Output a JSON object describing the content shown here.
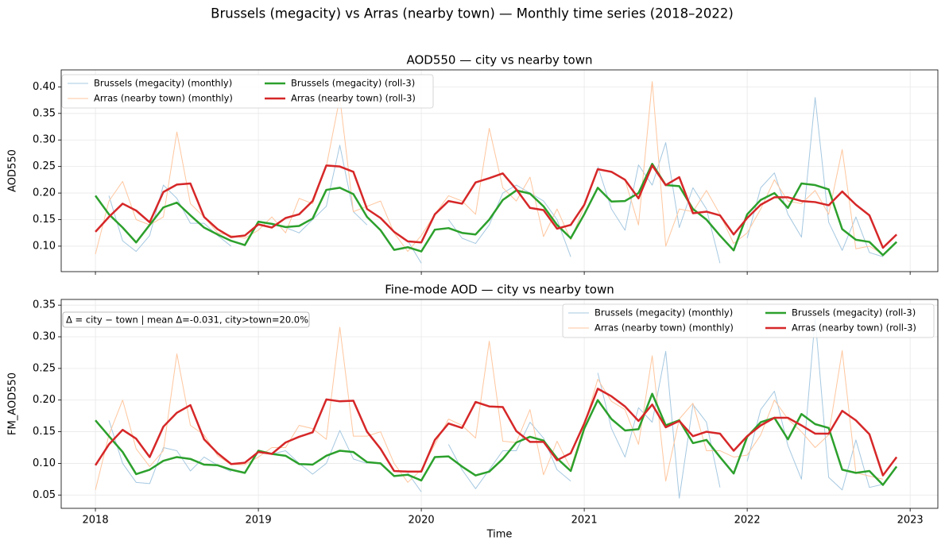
{
  "title": "Brussels (megacity) vs Arras (nearby town) — Monthly time series (2018–2022)",
  "chart_data": [
    {
      "type": "line",
      "title": "AOD550 — city vs nearby town",
      "y_label": "AOD550",
      "x": [
        2018,
        2018.083,
        2018.167,
        2018.25,
        2018.333,
        2018.417,
        2018.5,
        2018.583,
        2018.667,
        2018.75,
        2018.833,
        2018.917,
        2019,
        2019.083,
        2019.167,
        2019.25,
        2019.333,
        2019.417,
        2019.5,
        2019.583,
        2019.667,
        2019.75,
        2019.833,
        2019.917,
        2020,
        2020.083,
        2020.167,
        2020.25,
        2020.333,
        2020.417,
        2020.5,
        2020.583,
        2020.667,
        2020.75,
        2020.833,
        2020.917,
        2021,
        2021.083,
        2021.167,
        2021.25,
        2021.333,
        2021.417,
        2021.5,
        2021.583,
        2021.667,
        2021.75,
        2021.833,
        2021.917,
        2022,
        2022.083,
        2022.167,
        2022.25,
        2022.333,
        2022.417,
        2022.5,
        2022.583,
        2022.667,
        2022.75,
        2022.833,
        2022.917
      ],
      "xlim": [
        2017.79,
        2023.17
      ],
      "xticks": [
        2018,
        2019,
        2020,
        2021,
        2022,
        2023
      ],
      "xticklabels": false,
      "ylim": [
        0.052,
        0.432
      ],
      "yticks": [
        {
          "value": 0.1,
          "label": "0.10"
        },
        {
          "value": 0.15,
          "label": "0.15"
        },
        {
          "value": 0.2,
          "label": "0.20"
        },
        {
          "value": 0.25,
          "label": "0.25"
        },
        {
          "value": 0.3,
          "label": "0.30"
        },
        {
          "value": 0.35,
          "label": "0.35"
        },
        {
          "value": 0.4,
          "label": "0.40"
        }
      ],
      "grid": true,
      "legend": "upper left",
      "series": [
        {
          "name": "Brussels (megacity) (monthly)",
          "color": "#a5c8e1",
          "linewidth": 1,
          "values": [
            null,
            0.195,
            0.11,
            0.09,
            0.12,
            0.215,
            0.19,
            0.143,
            0.143,
            0.12,
            0.1,
            null,
            null,
            0.14,
            0.135,
            0.125,
            0.15,
            0.175,
            0.29,
            0.165,
            0.14,
            null,
            null,
            0.11,
            0.068,
            null,
            0.15,
            0.115,
            0.105,
            0.14,
            0.2,
            0.215,
            0.2,
            0.185,
            0.15,
            0.08,
            null,
            0.25,
            0.17,
            0.13,
            0.253,
            0.215,
            0.295,
            0.135,
            0.21,
            0.17,
            0.068,
            null,
            0.115,
            0.21,
            0.238,
            0.16,
            0.117,
            0.38,
            0.145,
            0.092,
            0.155,
            0.088,
            0.08,
            null
          ]
        },
        {
          "name": "Arras (nearby town) (monthly)",
          "color": "#ffc69e",
          "linewidth": 1,
          "values": [
            0.085,
            0.185,
            0.222,
            0.15,
            0.14,
            0.155,
            0.315,
            0.18,
            0.155,
            0.125,
            0.12,
            0.115,
            0.13,
            0.155,
            0.125,
            0.19,
            0.18,
            0.25,
            0.38,
            0.165,
            0.175,
            0.185,
            0.125,
            0.09,
            0.12,
            0.16,
            0.195,
            0.185,
            0.16,
            0.322,
            0.21,
            0.185,
            0.23,
            0.118,
            0.17,
            0.112,
            0.175,
            0.245,
            0.24,
            0.225,
            0.14,
            0.41,
            0.1,
            0.17,
            0.165,
            0.205,
            0.16,
            0.105,
            0.125,
            0.17,
            0.225,
            0.185,
            0.18,
            0.205,
            0.16,
            0.282,
            0.095,
            0.1,
            0.085,
            null
          ]
        },
        {
          "name": "Brussels (megacity) (roll-3)",
          "color": "#2ca02c",
          "linewidth": 2.5,
          "values": [
            0.195,
            0.16,
            0.135,
            0.107,
            0.14,
            0.173,
            0.182,
            0.158,
            0.135,
            0.122,
            0.11,
            0.102,
            0.146,
            0.142,
            0.136,
            0.138,
            0.152,
            0.206,
            0.21,
            0.198,
            0.155,
            0.13,
            0.093,
            0.098,
            0.09,
            0.131,
            0.134,
            0.125,
            0.122,
            0.15,
            0.187,
            0.205,
            0.199,
            0.175,
            0.14,
            0.115,
            0.16,
            0.21,
            0.184,
            0.185,
            0.2,
            0.255,
            0.215,
            0.213,
            0.17,
            0.15,
            0.12,
            0.092,
            0.16,
            0.187,
            0.2,
            0.172,
            0.218,
            0.215,
            0.207,
            0.132,
            0.112,
            0.108,
            0.083,
            0.108
          ]
        },
        {
          "name": "Arras (nearby town) (roll-3)",
          "color": "#d62728",
          "linewidth": 2.5,
          "values": [
            0.127,
            0.155,
            0.18,
            0.167,
            0.145,
            0.202,
            0.216,
            0.218,
            0.155,
            0.132,
            0.117,
            0.12,
            0.141,
            0.135,
            0.153,
            0.16,
            0.185,
            0.252,
            0.25,
            0.24,
            0.17,
            0.153,
            0.127,
            0.109,
            0.107,
            0.16,
            0.185,
            0.18,
            0.22,
            0.228,
            0.237,
            0.207,
            0.172,
            0.168,
            0.133,
            0.14,
            0.178,
            0.245,
            0.24,
            0.225,
            0.19,
            0.252,
            0.215,
            0.23,
            0.162,
            0.165,
            0.158,
            0.122,
            0.153,
            0.178,
            0.192,
            0.192,
            0.185,
            0.183,
            0.177,
            0.203,
            0.178,
            0.158,
            0.097,
            0.122
          ]
        }
      ]
    },
    {
      "type": "line",
      "title": "Fine-mode AOD — city vs nearby town",
      "y_label": "FM_AOD550",
      "x_label": "Time",
      "annotation": "Δ = city − town | mean Δ=-0.031, city>town=20.0%",
      "x": [
        2018,
        2018.083,
        2018.167,
        2018.25,
        2018.333,
        2018.417,
        2018.5,
        2018.583,
        2018.667,
        2018.75,
        2018.833,
        2018.917,
        2019,
        2019.083,
        2019.167,
        2019.25,
        2019.333,
        2019.417,
        2019.5,
        2019.583,
        2019.667,
        2019.75,
        2019.833,
        2019.917,
        2020,
        2020.083,
        2020.167,
        2020.25,
        2020.333,
        2020.417,
        2020.5,
        2020.583,
        2020.667,
        2020.75,
        2020.833,
        2020.917,
        2021,
        2021.083,
        2021.167,
        2021.25,
        2021.333,
        2021.417,
        2021.5,
        2021.583,
        2021.667,
        2021.75,
        2021.833,
        2021.917,
        2022,
        2022.083,
        2022.167,
        2022.25,
        2022.333,
        2022.417,
        2022.5,
        2022.583,
        2022.667,
        2022.75,
        2022.833,
        2022.917
      ],
      "xlim": [
        2017.79,
        2023.17
      ],
      "xticks": [
        2018,
        2019,
        2020,
        2021,
        2022,
        2023
      ],
      "xticklabels": true,
      "ylim": [
        0.029,
        0.359
      ],
      "yticks": [
        {
          "value": 0.05,
          "label": "0.05"
        },
        {
          "value": 0.1,
          "label": "0.10"
        },
        {
          "value": 0.15,
          "label": "0.15"
        },
        {
          "value": 0.2,
          "label": "0.20"
        },
        {
          "value": 0.25,
          "label": "0.25"
        },
        {
          "value": 0.3,
          "label": "0.30"
        },
        {
          "value": 0.35,
          "label": "0.35"
        }
      ],
      "grid": true,
      "legend": "upper right",
      "series": [
        {
          "name": "Brussels (megacity) (monthly)",
          "color": "#a5c8e1",
          "linewidth": 1,
          "values": [
            null,
            0.168,
            0.1,
            0.07,
            0.068,
            0.125,
            0.12,
            0.088,
            0.11,
            0.097,
            0.087,
            null,
            null,
            0.115,
            0.12,
            0.1,
            0.083,
            0.1,
            0.152,
            0.107,
            0.1,
            null,
            null,
            0.085,
            0.055,
            null,
            0.13,
            0.09,
            0.06,
            0.09,
            0.12,
            0.12,
            0.165,
            0.14,
            0.09,
            0.072,
            null,
            0.243,
            0.155,
            0.11,
            0.188,
            0.165,
            0.277,
            0.045,
            0.193,
            0.165,
            0.062,
            null,
            0.103,
            0.185,
            0.214,
            0.128,
            0.075,
            0.33,
            0.078,
            0.058,
            0.137,
            0.062,
            0.067,
            null
          ]
        },
        {
          "name": "Arras (nearby town) (monthly)",
          "color": "#ffc69e",
          "linewidth": 1,
          "values": [
            0.058,
            0.145,
            0.2,
            0.123,
            0.095,
            0.12,
            0.273,
            0.16,
            0.145,
            0.112,
            0.098,
            0.098,
            0.11,
            0.125,
            0.125,
            0.16,
            0.155,
            0.138,
            0.315,
            0.143,
            0.143,
            0.15,
            0.1,
            0.07,
            0.09,
            0.13,
            0.17,
            0.16,
            0.14,
            0.293,
            0.135,
            0.133,
            0.185,
            0.082,
            0.135,
            0.092,
            0.16,
            0.233,
            0.198,
            0.185,
            0.13,
            0.27,
            0.072,
            0.17,
            0.195,
            0.12,
            0.12,
            0.11,
            0.113,
            0.145,
            0.2,
            0.17,
            0.15,
            0.125,
            0.145,
            0.278,
            0.085,
            0.08,
            0.075,
            null
          ]
        },
        {
          "name": "Brussels (megacity) (roll-3)",
          "color": "#2ca02c",
          "linewidth": 2.5,
          "values": [
            0.168,
            0.143,
            0.118,
            0.083,
            0.09,
            0.104,
            0.11,
            0.107,
            0.098,
            0.097,
            0.09,
            0.085,
            0.12,
            0.115,
            0.112,
            0.099,
            0.098,
            0.112,
            0.12,
            0.118,
            0.102,
            0.1,
            0.08,
            0.082,
            0.073,
            0.11,
            0.111,
            0.095,
            0.081,
            0.087,
            0.107,
            0.133,
            0.142,
            0.136,
            0.108,
            0.088,
            0.155,
            0.2,
            0.17,
            0.152,
            0.154,
            0.21,
            0.16,
            0.168,
            0.132,
            0.137,
            0.11,
            0.084,
            0.142,
            0.165,
            0.172,
            0.138,
            0.178,
            0.162,
            0.156,
            0.09,
            0.085,
            0.088,
            0.066,
            0.095
          ]
        },
        {
          "name": "Arras (nearby town) (roll-3)",
          "color": "#d62728",
          "linewidth": 2.5,
          "values": [
            0.097,
            0.13,
            0.153,
            0.139,
            0.11,
            0.158,
            0.18,
            0.192,
            0.138,
            0.116,
            0.099,
            0.101,
            0.118,
            0.115,
            0.133,
            0.142,
            0.149,
            0.201,
            0.198,
            0.199,
            0.15,
            0.123,
            0.088,
            0.087,
            0.087,
            0.137,
            0.163,
            0.156,
            0.197,
            0.19,
            0.189,
            0.151,
            0.134,
            0.134,
            0.105,
            0.116,
            0.163,
            0.218,
            0.206,
            0.19,
            0.167,
            0.193,
            0.157,
            0.167,
            0.143,
            0.15,
            0.147,
            0.12,
            0.143,
            0.16,
            0.172,
            0.172,
            0.16,
            0.147,
            0.147,
            0.183,
            0.168,
            0.146,
            0.081,
            0.11
          ]
        }
      ]
    }
  ]
}
